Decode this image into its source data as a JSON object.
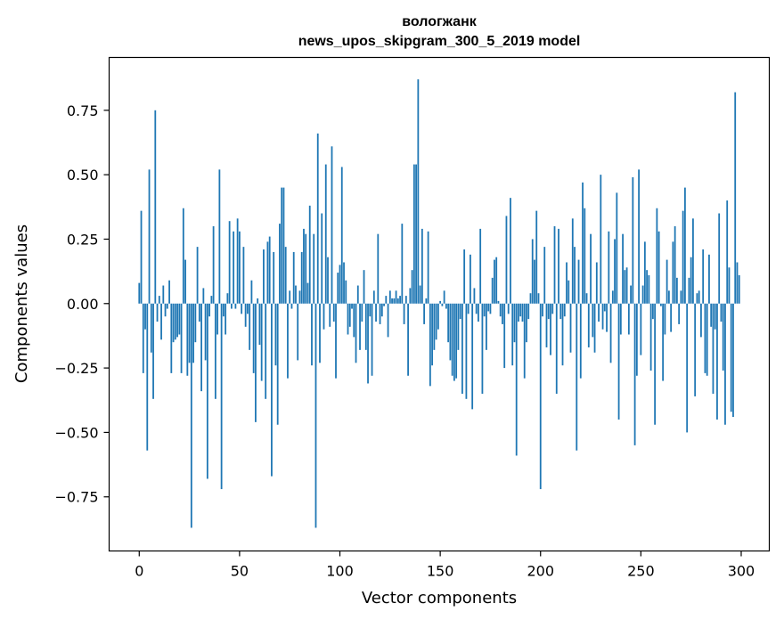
{
  "chart_data": {
    "type": "bar",
    "title": "вологжанк",
    "subtitle": "news_upos_skipgram_300_5_2019 model",
    "xlabel": "Vector components",
    "ylabel": "Components values",
    "xlim": [
      -15,
      314
    ],
    "ylim": [
      -0.96,
      0.955
    ],
    "xticks": [
      0,
      50,
      100,
      150,
      200,
      250,
      300
    ],
    "xtick_labels": [
      "0",
      "50",
      "100",
      "150",
      "200",
      "250",
      "300"
    ],
    "yticks": [
      -0.75,
      -0.5,
      -0.25,
      0.0,
      0.25,
      0.5,
      0.75
    ],
    "ytick_labels": [
      "−0.75",
      "−0.50",
      "−0.25",
      "0.00",
      "0.25",
      "0.50",
      "0.75"
    ],
    "bar_color": "#1f77b4",
    "grid": false,
    "x": "0..299 (index of each value)",
    "values": [
      0.08,
      0.36,
      -0.27,
      -0.1,
      -0.57,
      0.52,
      -0.19,
      -0.37,
      0.75,
      -0.07,
      0.03,
      -0.14,
      0.07,
      -0.05,
      -0.02,
      0.09,
      -0.27,
      -0.15,
      -0.14,
      -0.13,
      -0.12,
      -0.27,
      0.37,
      0.17,
      -0.28,
      -0.23,
      -0.87,
      -0.23,
      -0.15,
      0.22,
      -0.07,
      -0.34,
      0.06,
      -0.22,
      -0.68,
      -0.05,
      0.03,
      0.3,
      -0.37,
      -0.12,
      0.52,
      -0.72,
      -0.05,
      -0.12,
      0.04,
      0.32,
      -0.02,
      0.28,
      -0.02,
      0.33,
      0.28,
      -0.04,
      0.22,
      -0.09,
      -0.04,
      -0.18,
      0.09,
      -0.27,
      -0.46,
      0.02,
      -0.16,
      -0.3,
      0.21,
      -0.37,
      0.24,
      0.26,
      -0.67,
      0.2,
      -0.24,
      -0.47,
      0.31,
      0.45,
      0.45,
      0.22,
      -0.29,
      0.05,
      -0.02,
      0.2,
      0.07,
      -0.22,
      0.05,
      0.2,
      0.29,
      0.27,
      0.08,
      0.38,
      -0.24,
      0.27,
      -0.87,
      0.66,
      -0.23,
      0.35,
      -0.1,
      0.54,
      0.18,
      -0.09,
      0.61,
      -0.07,
      -0.29,
      0.12,
      0.15,
      0.53,
      0.16,
      0.09,
      -0.12,
      -0.09,
      -0.02,
      -0.13,
      -0.23,
      0.07,
      -0.18,
      -0.07,
      0.13,
      -0.18,
      -0.31,
      -0.05,
      -0.28,
      0.05,
      -0.07,
      0.27,
      -0.08,
      -0.05,
      -0.01,
      0.03,
      -0.13,
      0.05,
      0.02,
      0.02,
      0.05,
      0.02,
      0.03,
      0.31,
      -0.08,
      0.03,
      -0.28,
      0.06,
      0.13,
      0.54,
      0.54,
      0.87,
      0.07,
      0.29,
      -0.08,
      0.02,
      0.28,
      -0.32,
      -0.24,
      -0.18,
      -0.14,
      -0.1,
      0.01,
      -0.01,
      0.05,
      -0.02,
      -0.15,
      -0.22,
      -0.28,
      -0.3,
      -0.29,
      -0.18,
      -0.06,
      -0.35,
      0.21,
      -0.37,
      -0.04,
      0.19,
      -0.41,
      0.06,
      -0.04,
      -0.07,
      0.29,
      -0.35,
      -0.05,
      -0.18,
      -0.03,
      -0.04,
      0.1,
      0.17,
      0.18,
      0.01,
      -0.05,
      -0.08,
      -0.25,
      0.34,
      -0.04,
      0.41,
      -0.24,
      -0.15,
      -0.59,
      -0.07,
      -0.05,
      -0.07,
      -0.29,
      -0.15,
      -0.06,
      0.04,
      0.25,
      0.17,
      0.36,
      0.04,
      -0.72,
      -0.05,
      0.22,
      -0.17,
      -0.06,
      -0.2,
      -0.04,
      0.3,
      -0.35,
      0.29,
      -0.06,
      -0.24,
      -0.05,
      0.16,
      0.09,
      -0.19,
      0.33,
      0.22,
      -0.57,
      0.17,
      -0.29,
      0.47,
      0.37,
      0.04,
      -0.17,
      0.27,
      -0.13,
      -0.19,
      0.16,
      -0.07,
      0.5,
      -0.1,
      -0.03,
      -0.11,
      0.28,
      -0.23,
      0.05,
      0.25,
      0.43,
      -0.45,
      -0.12,
      0.27,
      0.13,
      0.14,
      -0.12,
      0.07,
      0.49,
      -0.55,
      -0.28,
      0.52,
      -0.2,
      0.07,
      0.24,
      0.13,
      0.11,
      -0.26,
      -0.06,
      -0.47,
      0.37,
      0.28,
      -0.01,
      -0.3,
      -0.12,
      0.17,
      0.05,
      -0.11,
      0.24,
      0.3,
      0.1,
      -0.08,
      0.05,
      0.36,
      0.45,
      -0.5,
      0.1,
      0.18,
      0.33,
      -0.36,
      0.04,
      0.05,
      -0.13,
      0.21,
      -0.27,
      -0.28,
      0.19,
      -0.09,
      -0.35,
      -0.1,
      -0.45,
      0.35,
      -0.07,
      -0.26,
      -0.47,
      0.4,
      0.14,
      -0.42,
      -0.44,
      0.82,
      0.16,
      0.11
    ]
  }
}
